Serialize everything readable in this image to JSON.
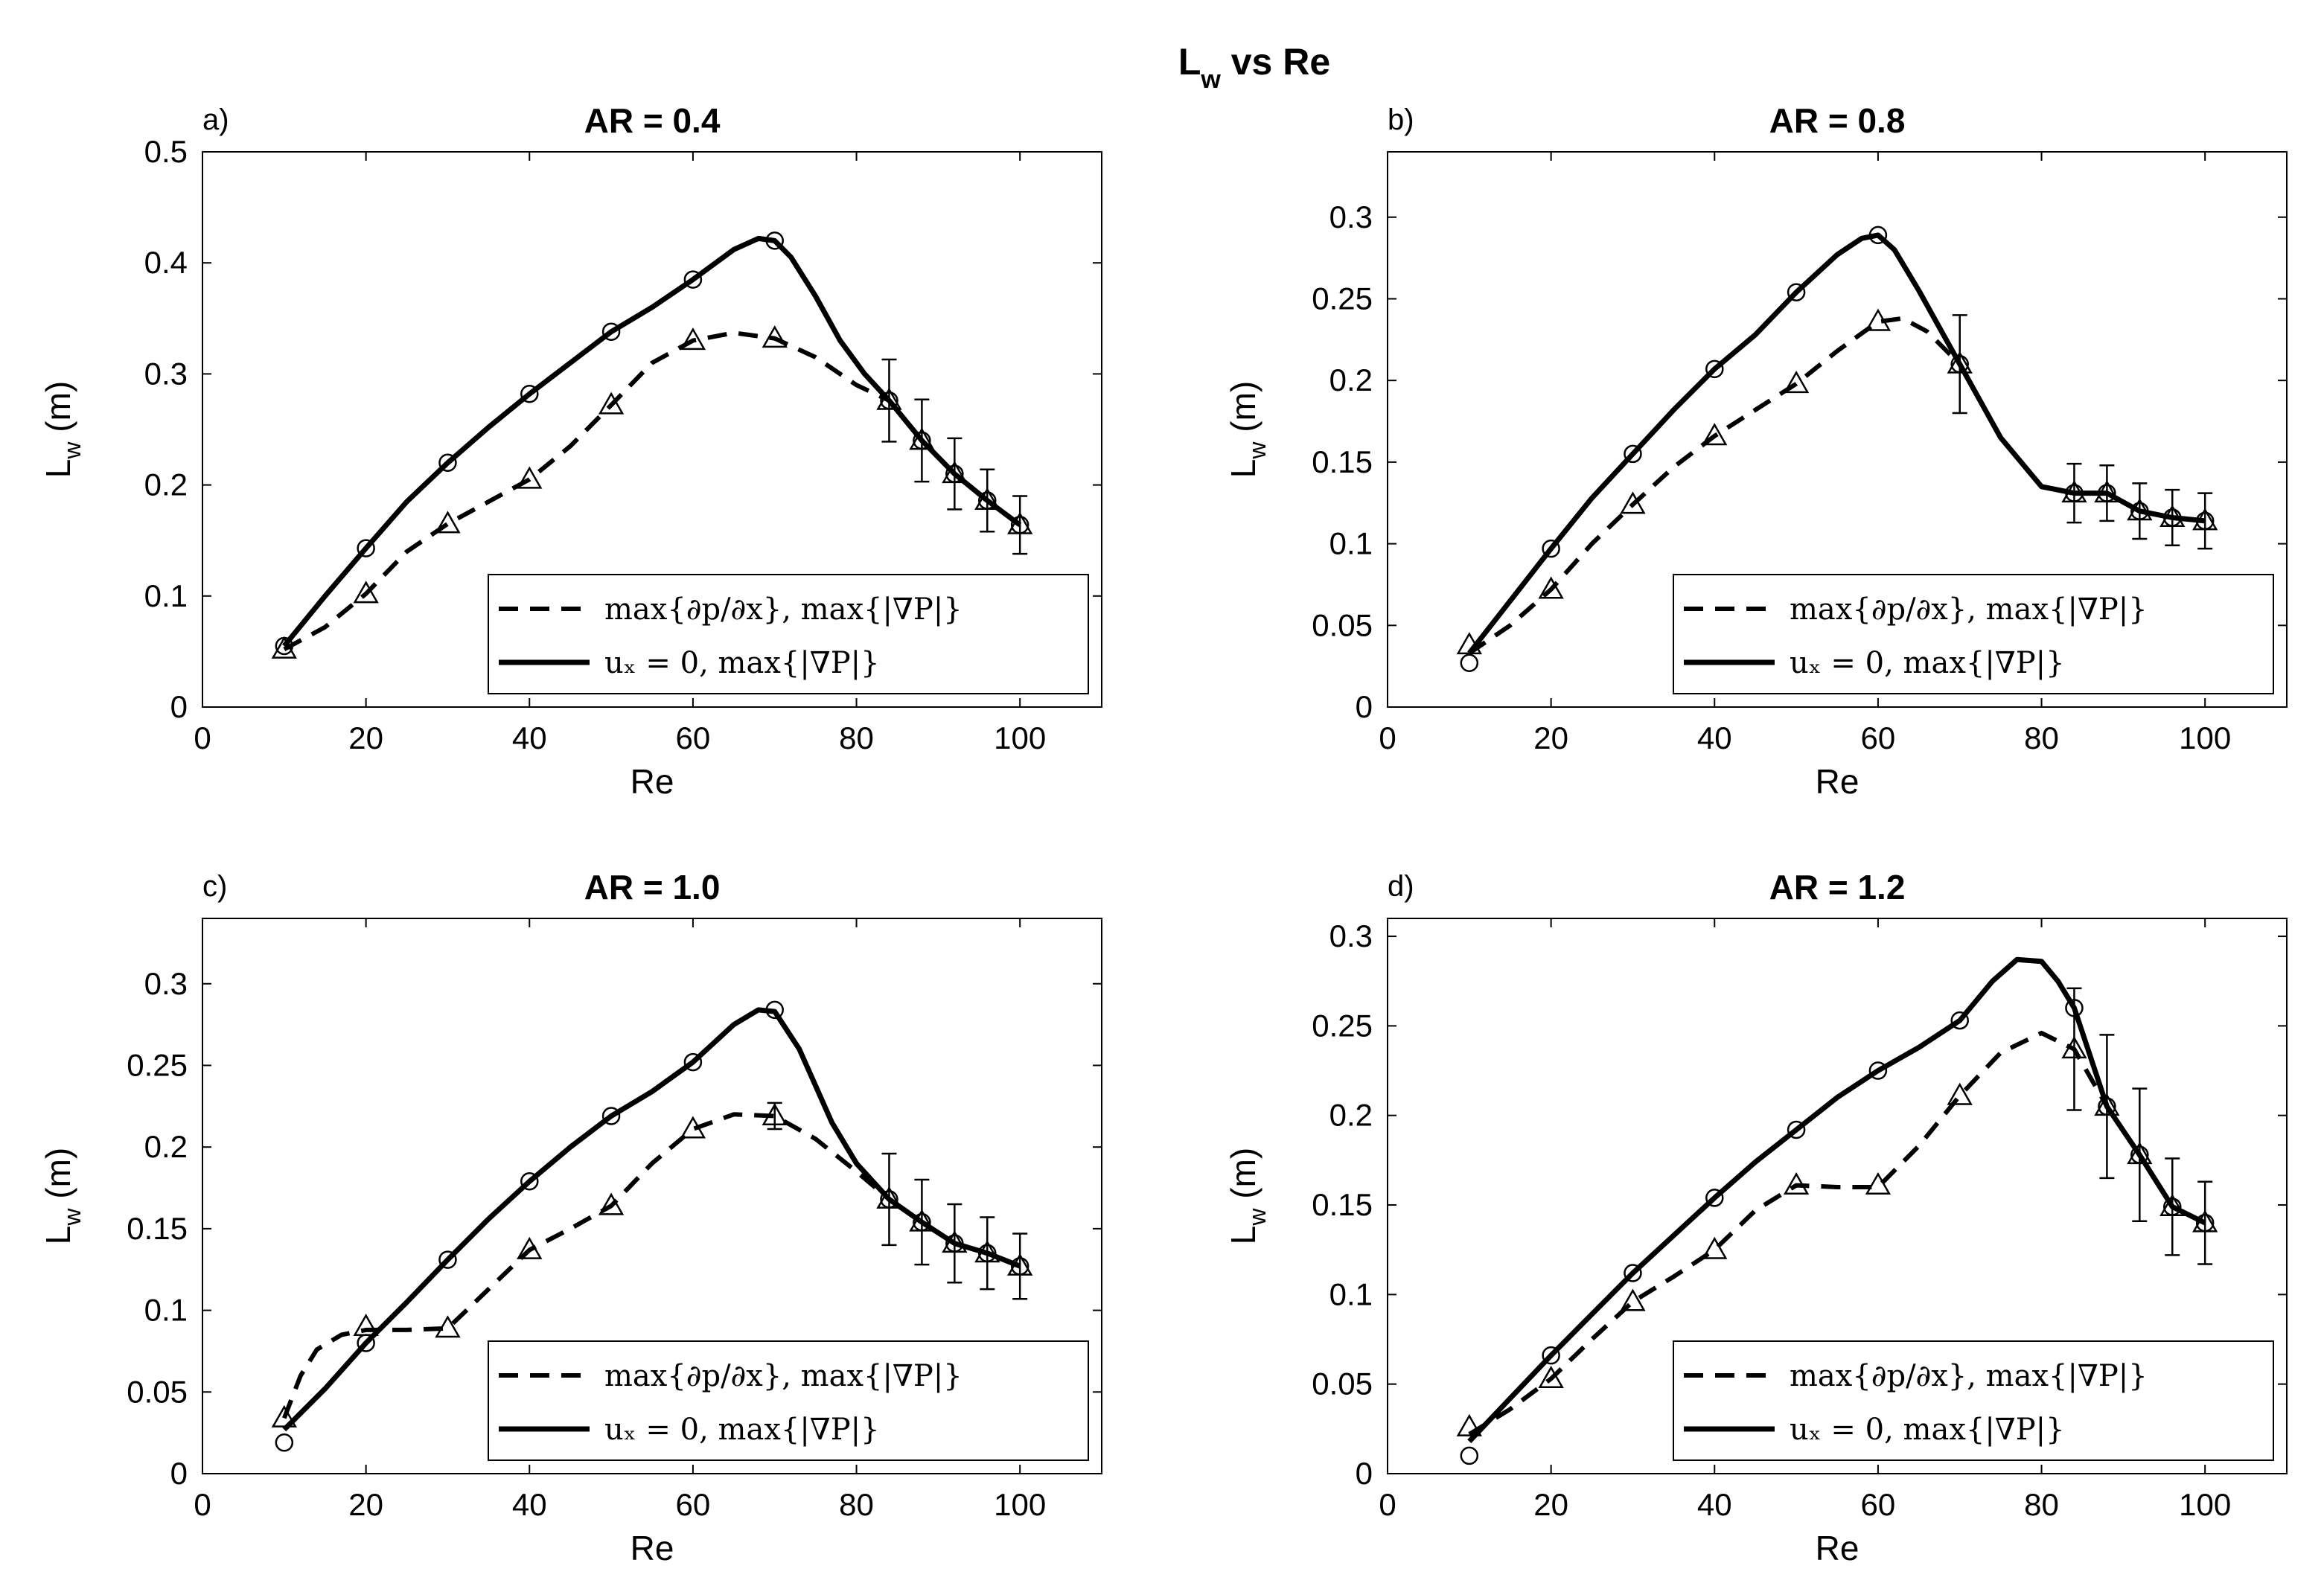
{
  "figure": {
    "title_main": "L",
    "title_sub": "w",
    "title_rest": " vs Re"
  },
  "legend": {
    "dashed_label": "max{∂p/∂x}, max{|∇P|}",
    "solid_label": "uₓ = 0,  max{|∇P|}"
  },
  "colors": {
    "line": "#000000",
    "background": "#ffffff"
  },
  "chart_data": [
    {
      "type": "line",
      "panel": "a)",
      "title": "AR = 0.4",
      "xlabel": "Re",
      "ylabel": "L_w (m)",
      "ylabel_main": "L",
      "ylabel_sub": "w",
      "ylabel_unit": " (m)",
      "xlim": [
        0,
        110
      ],
      "ylim": [
        0,
        0.5
      ],
      "xticks": [
        0,
        20,
        40,
        60,
        80,
        100
      ],
      "xtick_labels": [
        "0",
        "20",
        "40",
        "60",
        "80",
        "100"
      ],
      "yticks": [
        0,
        0.1,
        0.2,
        0.3,
        0.4,
        0.5
      ],
      "ytick_labels": [
        "0",
        "0.1",
        "0.2",
        "0.3",
        "0.4",
        "0.5"
      ],
      "legend_position": "lower-right",
      "series": [
        {
          "name": "max{∂p/∂x}, max{|∇P|}",
          "style": "dashed",
          "marker": "triangle",
          "x": [
            10,
            20,
            30,
            40,
            50,
            60,
            70,
            84,
            88,
            92,
            96,
            100
          ],
          "y": [
            0.052,
            0.102,
            0.165,
            0.205,
            0.272,
            0.33,
            0.332,
            0.276,
            0.24,
            0.21,
            0.186,
            0.164
          ],
          "curve_x": [
            10,
            15,
            20,
            25,
            30,
            35,
            40,
            45,
            50,
            55,
            60,
            65,
            70,
            75,
            80,
            84,
            88,
            92,
            96,
            100
          ],
          "curve_y": [
            0.052,
            0.072,
            0.102,
            0.14,
            0.165,
            0.185,
            0.205,
            0.235,
            0.272,
            0.31,
            0.33,
            0.337,
            0.332,
            0.315,
            0.29,
            0.276,
            0.24,
            0.21,
            0.186,
            0.164
          ]
        },
        {
          "name": "uₓ = 0,  max{|∇P|}",
          "style": "solid",
          "marker": "circle",
          "x": [
            10,
            20,
            30,
            40,
            50,
            60,
            70,
            84,
            88,
            92,
            96,
            100
          ],
          "y": [
            0.055,
            0.143,
            0.22,
            0.282,
            0.338,
            0.385,
            0.42,
            0.276,
            0.24,
            0.21,
            0.186,
            0.164
          ],
          "curve_x": [
            10,
            15,
            20,
            25,
            30,
            35,
            40,
            45,
            50,
            55,
            60,
            65,
            68,
            70,
            72,
            75,
            78,
            81,
            84,
            88,
            92,
            96,
            100
          ],
          "curve_y": [
            0.055,
            0.1,
            0.143,
            0.185,
            0.22,
            0.252,
            0.282,
            0.31,
            0.338,
            0.36,
            0.385,
            0.412,
            0.422,
            0.42,
            0.405,
            0.37,
            0.33,
            0.3,
            0.276,
            0.24,
            0.21,
            0.186,
            0.164
          ]
        }
      ],
      "error_bars": {
        "x": [
          84,
          88,
          92,
          96,
          100
        ],
        "y": [
          0.276,
          0.24,
          0.21,
          0.186,
          0.164
        ],
        "err": [
          0.037,
          0.037,
          0.032,
          0.028,
          0.026
        ]
      }
    },
    {
      "type": "line",
      "panel": "b)",
      "title": "AR = 0.8",
      "xlabel": "Re",
      "ylabel": "L_w (m)",
      "ylabel_main": "L",
      "ylabel_sub": "w",
      "ylabel_unit": " (m)",
      "xlim": [
        0,
        110
      ],
      "ylim": [
        0,
        0.34
      ],
      "xticks": [
        0,
        20,
        40,
        60,
        80,
        100
      ],
      "xtick_labels": [
        "0",
        "20",
        "40",
        "60",
        "80",
        "100"
      ],
      "yticks": [
        0,
        0.05,
        0.1,
        0.15,
        0.2,
        0.25,
        0.3
      ],
      "ytick_labels": [
        "0",
        "0.05",
        "0.1",
        "0.15",
        "0.2",
        "0.25",
        "0.3"
      ],
      "legend_position": "lower-right",
      "series": [
        {
          "name": "max{∂p/∂x}, max{|∇P|}",
          "style": "dashed",
          "marker": "triangle",
          "x": [
            10,
            20,
            30,
            40,
            50,
            60,
            70,
            84,
            88,
            92,
            96,
            100
          ],
          "y": [
            0.038,
            0.072,
            0.124,
            0.166,
            0.198,
            0.236,
            0.21,
            0.131,
            0.131,
            0.12,
            0.116,
            0.114
          ],
          "curve_x": [
            10,
            15,
            20,
            25,
            30,
            35,
            40,
            45,
            50,
            55,
            60,
            63,
            66,
            70,
            75,
            80,
            84,
            88,
            92,
            96,
            100
          ],
          "curve_y": [
            0.033,
            0.05,
            0.072,
            0.1,
            0.124,
            0.147,
            0.166,
            0.182,
            0.198,
            0.218,
            0.236,
            0.238,
            0.23,
            0.21,
            0.165,
            0.135,
            0.131,
            0.131,
            0.12,
            0.116,
            0.114
          ]
        },
        {
          "name": "uₓ = 0,  max{|∇P|}",
          "style": "solid",
          "marker": "circle",
          "x": [
            10,
            20,
            30,
            40,
            50,
            60,
            70,
            84,
            88,
            92,
            96,
            100
          ],
          "y": [
            0.027,
            0.097,
            0.155,
            0.207,
            0.254,
            0.289,
            0.21,
            0.131,
            0.131,
            0.12,
            0.116,
            0.114
          ],
          "curve_x": [
            10,
            15,
            20,
            25,
            30,
            35,
            40,
            45,
            50,
            55,
            58,
            60,
            62,
            65,
            70,
            75,
            80,
            84,
            88,
            92,
            96,
            100
          ],
          "curve_y": [
            0.033,
            0.065,
            0.097,
            0.128,
            0.155,
            0.182,
            0.207,
            0.228,
            0.254,
            0.277,
            0.287,
            0.289,
            0.28,
            0.255,
            0.21,
            0.165,
            0.135,
            0.131,
            0.131,
            0.12,
            0.116,
            0.114
          ]
        }
      ],
      "error_bars": {
        "x": [
          70,
          84,
          88,
          92,
          96,
          100
        ],
        "y": [
          0.21,
          0.131,
          0.131,
          0.12,
          0.116,
          0.114
        ],
        "err": [
          0.03,
          0.018,
          0.017,
          0.017,
          0.017,
          0.017
        ]
      }
    },
    {
      "type": "line",
      "panel": "c)",
      "title": "AR = 1.0",
      "xlabel": "Re",
      "ylabel": "L_w (m)",
      "ylabel_main": "L",
      "ylabel_sub": "w",
      "ylabel_unit": " (m)",
      "xlim": [
        0,
        110
      ],
      "ylim": [
        0,
        0.34
      ],
      "xticks": [
        0,
        20,
        40,
        60,
        80,
        100
      ],
      "xtick_labels": [
        "0",
        "20",
        "40",
        "60",
        "80",
        "100"
      ],
      "yticks": [
        0,
        0.05,
        0.1,
        0.15,
        0.2,
        0.25,
        0.3
      ],
      "ytick_labels": [
        "0",
        "0.05",
        "0.1",
        "0.15",
        "0.2",
        "0.25",
        "0.3"
      ],
      "legend_position": "lower-right",
      "series": [
        {
          "name": "max{∂p/∂x}, max{|∇P|}",
          "style": "dashed",
          "marker": "triangle",
          "x": [
            10,
            20,
            30,
            40,
            50,
            60,
            70,
            84,
            88,
            92,
            96,
            100
          ],
          "y": [
            0.034,
            0.09,
            0.089,
            0.137,
            0.164,
            0.211,
            0.219,
            0.168,
            0.154,
            0.141,
            0.135,
            0.127
          ],
          "curve_x": [
            10,
            12,
            14,
            17,
            20,
            25,
            30,
            35,
            40,
            45,
            50,
            55,
            60,
            65,
            70,
            75,
            80,
            84,
            88,
            92,
            96,
            100
          ],
          "curve_y": [
            0.034,
            0.06,
            0.076,
            0.085,
            0.088,
            0.088,
            0.089,
            0.113,
            0.137,
            0.15,
            0.164,
            0.19,
            0.211,
            0.22,
            0.219,
            0.205,
            0.185,
            0.168,
            0.154,
            0.141,
            0.135,
            0.127
          ]
        },
        {
          "name": "uₓ = 0,  max{|∇P|}",
          "style": "solid",
          "marker": "circle",
          "x": [
            10,
            20,
            30,
            40,
            50,
            60,
            70,
            84,
            88,
            92,
            96,
            100
          ],
          "y": [
            0.019,
            0.08,
            0.131,
            0.179,
            0.219,
            0.252,
            0.284,
            0.168,
            0.154,
            0.141,
            0.135,
            0.127
          ],
          "curve_x": [
            10,
            15,
            20,
            25,
            30,
            35,
            40,
            45,
            50,
            55,
            60,
            65,
            68,
            70,
            73,
            77,
            80,
            84,
            88,
            92,
            96,
            100
          ],
          "curve_y": [
            0.027,
            0.052,
            0.08,
            0.105,
            0.131,
            0.156,
            0.179,
            0.2,
            0.219,
            0.234,
            0.252,
            0.275,
            0.284,
            0.283,
            0.26,
            0.215,
            0.19,
            0.168,
            0.154,
            0.141,
            0.135,
            0.127
          ]
        }
      ],
      "error_bars": {
        "x": [
          70,
          84,
          88,
          92,
          96,
          100
        ],
        "y": [
          0.219,
          0.168,
          0.154,
          0.141,
          0.135,
          0.127
        ],
        "err": [
          0.008,
          0.028,
          0.026,
          0.024,
          0.022,
          0.02
        ]
      }
    },
    {
      "type": "line",
      "panel": "d)",
      "title": "AR = 1.2",
      "xlabel": "Re",
      "ylabel": "L_w (m)",
      "ylabel_main": "L",
      "ylabel_sub": "w",
      "ylabel_unit": " (m)",
      "xlim": [
        0,
        110
      ],
      "ylim": [
        0,
        0.31
      ],
      "xticks": [
        0,
        20,
        40,
        60,
        80,
        100
      ],
      "xtick_labels": [
        "0",
        "20",
        "40",
        "60",
        "80",
        "100"
      ],
      "yticks": [
        0,
        0.05,
        0.1,
        0.15,
        0.2,
        0.25,
        0.3
      ],
      "ytick_labels": [
        "0",
        "0.05",
        "0.1",
        "0.15",
        "0.2",
        "0.25",
        "0.3"
      ],
      "legend_position": "lower-right",
      "series": [
        {
          "name": "max{∂p/∂x}, max{|∇P|}",
          "style": "dashed",
          "marker": "triangle",
          "x": [
            10,
            20,
            30,
            40,
            50,
            60,
            70,
            84,
            88,
            92,
            96,
            100
          ],
          "y": [
            0.026,
            0.053,
            0.096,
            0.125,
            0.161,
            0.161,
            0.211,
            0.237,
            0.205,
            0.178,
            0.149,
            0.14
          ],
          "curve_x": [
            10,
            15,
            20,
            25,
            30,
            35,
            40,
            45,
            50,
            55,
            60,
            65,
            70,
            75,
            80,
            84,
            88,
            92,
            96,
            100
          ],
          "curve_y": [
            0.022,
            0.036,
            0.053,
            0.075,
            0.096,
            0.11,
            0.125,
            0.147,
            0.161,
            0.16,
            0.16,
            0.183,
            0.211,
            0.235,
            0.246,
            0.237,
            0.205,
            0.178,
            0.149,
            0.14
          ]
        },
        {
          "name": "uₓ = 0,  max{|∇P|}",
          "style": "solid",
          "marker": "circle",
          "x": [
            10,
            20,
            30,
            40,
            50,
            60,
            70,
            84,
            88,
            92,
            96,
            100
          ],
          "y": [
            0.01,
            0.066,
            0.112,
            0.154,
            0.192,
            0.225,
            0.253,
            0.26,
            0.205,
            0.178,
            0.149,
            0.14
          ],
          "curve_x": [
            10,
            15,
            20,
            25,
            30,
            35,
            40,
            45,
            50,
            55,
            60,
            65,
            70,
            74,
            77,
            80,
            82,
            84,
            88,
            92,
            96,
            100
          ],
          "curve_y": [
            0.018,
            0.042,
            0.066,
            0.089,
            0.112,
            0.133,
            0.154,
            0.174,
            0.192,
            0.21,
            0.225,
            0.238,
            0.253,
            0.275,
            0.287,
            0.286,
            0.275,
            0.26,
            0.205,
            0.178,
            0.149,
            0.14
          ]
        }
      ],
      "error_bars": {
        "x": [
          84,
          88,
          92,
          96,
          100
        ],
        "y": [
          0.237,
          0.205,
          0.178,
          0.149,
          0.14
        ],
        "err": [
          0.034,
          0.04,
          0.037,
          0.027,
          0.023
        ]
      }
    }
  ]
}
